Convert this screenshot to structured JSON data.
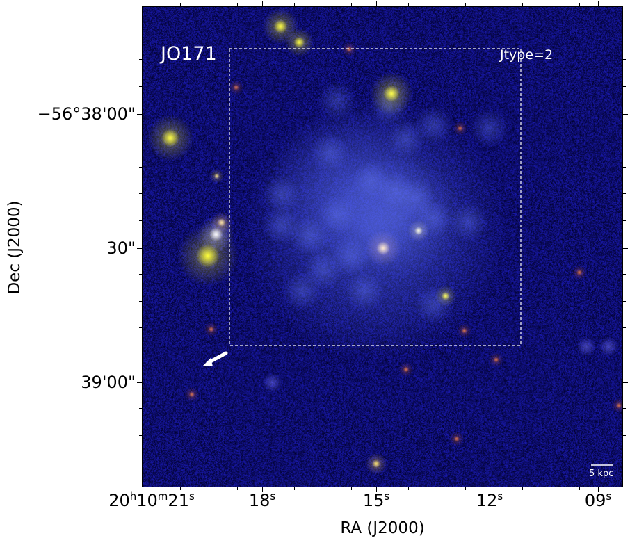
{
  "image": {
    "object_label": "JO171",
    "jtype_label": "Jtype=2",
    "scale_bar_label": "5 kpc",
    "colors": {
      "sky": "#1a2080",
      "galaxy": "#5a6cf0",
      "star": "#ffff40",
      "annotation": "#ffffff"
    }
  },
  "axes": {
    "x_title": "RA (J2000)",
    "y_title": "Dec (J2000)",
    "x_ticks": [
      {
        "main": "20",
        "sup1": "h",
        "mid": "10",
        "sup2": "m",
        "val": "21",
        "sup3": "s"
      },
      {
        "val": "18",
        "sup3": "s"
      },
      {
        "val": "15",
        "sup3": "s"
      },
      {
        "val": "12",
        "sup3": "s"
      },
      {
        "val": "09",
        "sup3": "s"
      }
    ],
    "y_ticks": [
      "−56°38'00\"",
      "30\"",
      "39'00\""
    ]
  }
}
